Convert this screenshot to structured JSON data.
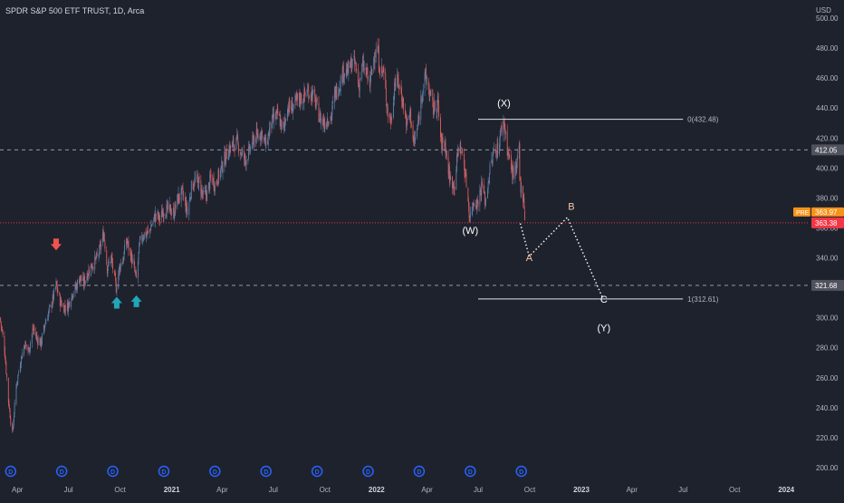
{
  "header": {
    "symbol_title": "SPDR S&P 500 ETF TRUST, 1D, Arca",
    "currency": "USD"
  },
  "colors": {
    "background": "#1e222d",
    "up": "#26a69a",
    "down": "#ef5350",
    "up_candle_body": "#5b7fa8",
    "down_candle_body": "#d65a5a",
    "last_price": "#f23645",
    "pre_market": "#f7931a",
    "level_line": "#e0e3eb",
    "wave_path": "#ffffff",
    "axis_text": "#b2b5be",
    "dividend_marker": "#2962ff"
  },
  "price_axis": {
    "ticks": [
      "500.00",
      "480.00",
      "460.00",
      "440.00",
      "420.00",
      "400.00",
      "380.00",
      "360.00",
      "340.00",
      "320.00",
      "300.00",
      "280.00",
      "260.00",
      "240.00",
      "220.00",
      "200.00"
    ]
  },
  "time_axis": {
    "ticks": [
      {
        "label": "Apr",
        "date": "2020-04-01"
      },
      {
        "label": "Jul",
        "date": "2020-07-01"
      },
      {
        "label": "Oct",
        "date": "2020-10-01"
      },
      {
        "label": "2021",
        "date": "2021-01-01",
        "bold": true
      },
      {
        "label": "Apr",
        "date": "2021-04-01"
      },
      {
        "label": "Jul",
        "date": "2021-07-01"
      },
      {
        "label": "Oct",
        "date": "2021-10-01"
      },
      {
        "label": "2022",
        "date": "2022-01-01",
        "bold": true
      },
      {
        "label": "Apr",
        "date": "2022-04-01"
      },
      {
        "label": "Jul",
        "date": "2022-07-01"
      },
      {
        "label": "Oct",
        "date": "2022-10-01"
      },
      {
        "label": "2023",
        "date": "2023-01-01",
        "bold": true
      },
      {
        "label": "Apr",
        "date": "2023-04-01"
      },
      {
        "label": "Jul",
        "date": "2023-07-01"
      },
      {
        "label": "Oct",
        "date": "2023-10-01"
      },
      {
        "label": "2024",
        "date": "2024-01-01",
        "bold": true
      }
    ]
  },
  "price_badges": {
    "last_price": "363.38",
    "pre_market_label": "PRE",
    "pre_market_price": "363.97",
    "level_412": "412.05",
    "level_321": "321.68"
  },
  "horizontal_levels": [
    {
      "price": 412.05,
      "style": "dashed"
    },
    {
      "price": 363.38,
      "style": "dotted-last"
    },
    {
      "price": 321.68,
      "style": "dashed"
    }
  ],
  "fib_levels": [
    {
      "label": "0(432.48)",
      "price": 432.48,
      "from": "2022-07-01",
      "to": "2023-07-01"
    },
    {
      "label": "1(312.61)",
      "price": 312.61,
      "from": "2022-07-01",
      "to": "2023-07-01"
    }
  ],
  "wave_labels": [
    {
      "text": "(X)",
      "date": "2022-08-16",
      "price": 441
    },
    {
      "text": "(W)",
      "date": "2022-06-17",
      "price": 356
    },
    {
      "text": "A",
      "date": "2022-09-30",
      "price": 338,
      "accent": true
    },
    {
      "text": "B",
      "date": "2022-12-14",
      "price": 372,
      "accent": true
    },
    {
      "text": "C",
      "date": "2023-02-10",
      "price": 310
    },
    {
      "text": "(Y)",
      "date": "2023-02-10",
      "price": 291
    }
  ],
  "wave_path": [
    {
      "date": "2022-09-14",
      "price": 363
    },
    {
      "date": "2022-09-30",
      "price": 341
    },
    {
      "date": "2022-12-07",
      "price": 367
    },
    {
      "date": "2023-02-07",
      "price": 314
    }
  ],
  "signal_arrows": [
    {
      "direction": "down",
      "color": "red",
      "date": "2020-06-09",
      "price": 348
    },
    {
      "direction": "up",
      "color": "teal",
      "date": "2020-09-25",
      "price": 311
    },
    {
      "direction": "up",
      "color": "teal",
      "date": "2020-10-30",
      "price": 312
    }
  ],
  "dividend_markers": {
    "label": "D",
    "dates": [
      "2020-03-20",
      "2020-06-19",
      "2020-09-18",
      "2020-12-18",
      "2021-03-19",
      "2021-06-18",
      "2021-09-17",
      "2021-12-17",
      "2022-03-18",
      "2022-06-17",
      "2022-09-16"
    ]
  },
  "chart_data": {
    "type": "candlestick",
    "title": "SPDR S&P 500 ETF TRUST, 1D, Arca",
    "ylabel": "USD",
    "ylim": [
      195,
      505
    ],
    "xlim": [
      "2020-03-01",
      "2024-02-10"
    ],
    "grid": false,
    "close_series": [
      [
        "2020-03-01",
        300
      ],
      [
        "2020-03-09",
        280
      ],
      [
        "2020-03-16",
        245
      ],
      [
        "2020-03-23",
        222
      ],
      [
        "2020-03-30",
        255
      ],
      [
        "2020-04-06",
        270
      ],
      [
        "2020-04-14",
        283
      ],
      [
        "2020-04-21",
        278
      ],
      [
        "2020-04-29",
        293
      ],
      [
        "2020-05-06",
        286
      ],
      [
        "2020-05-13",
        283
      ],
      [
        "2020-05-20",
        296
      ],
      [
        "2020-05-27",
        304
      ],
      [
        "2020-06-03",
        312
      ],
      [
        "2020-06-09",
        322
      ],
      [
        "2020-06-16",
        311
      ],
      [
        "2020-06-23",
        307
      ],
      [
        "2020-06-30",
        308
      ],
      [
        "2020-07-07",
        316
      ],
      [
        "2020-07-14",
        320
      ],
      [
        "2020-07-21",
        327
      ],
      [
        "2020-07-28",
        323
      ],
      [
        "2020-08-04",
        330
      ],
      [
        "2020-08-11",
        335
      ],
      [
        "2020-08-18",
        338
      ],
      [
        "2020-08-25",
        344
      ],
      [
        "2020-09-02",
        357
      ],
      [
        "2020-09-08",
        333
      ],
      [
        "2020-09-15",
        340
      ],
      [
        "2020-09-24",
        320
      ],
      [
        "2020-09-30",
        334
      ],
      [
        "2020-10-07",
        340
      ],
      [
        "2020-10-12",
        352
      ],
      [
        "2020-10-20",
        342
      ],
      [
        "2020-10-30",
        326
      ],
      [
        "2020-11-05",
        350
      ],
      [
        "2020-11-12",
        356
      ],
      [
        "2020-11-20",
        356
      ],
      [
        "2020-11-27",
        363
      ],
      [
        "2020-12-04",
        369
      ],
      [
        "2020-12-11",
        366
      ],
      [
        "2020-12-18",
        372
      ],
      [
        "2020-12-28",
        372
      ],
      [
        "2021-01-05",
        370
      ],
      [
        "2021-01-12",
        380
      ],
      [
        "2021-01-20",
        383
      ],
      [
        "2021-01-29",
        370
      ],
      [
        "2021-02-05",
        387
      ],
      [
        "2021-02-12",
        392
      ],
      [
        "2021-02-19",
        390
      ],
      [
        "2021-02-26",
        381
      ],
      [
        "2021-03-05",
        383
      ],
      [
        "2021-03-12",
        394
      ],
      [
        "2021-03-19",
        389
      ],
      [
        "2021-03-26",
        395
      ],
      [
        "2021-04-05",
        406
      ],
      [
        "2021-04-12",
        412
      ],
      [
        "2021-04-19",
        415
      ],
      [
        "2021-04-27",
        417
      ],
      [
        "2021-05-04",
        411
      ],
      [
        "2021-05-12",
        405
      ],
      [
        "2021-05-19",
        411
      ],
      [
        "2021-05-27",
        419
      ],
      [
        "2021-06-04",
        422
      ],
      [
        "2021-06-11",
        424
      ],
      [
        "2021-06-18",
        414
      ],
      [
        "2021-06-25",
        427
      ],
      [
        "2021-07-02",
        433
      ],
      [
        "2021-07-09",
        435
      ],
      [
        "2021-07-19",
        425
      ],
      [
        "2021-07-26",
        441
      ],
      [
        "2021-08-02",
        440
      ],
      [
        "2021-08-09",
        443
      ],
      [
        "2021-08-16",
        446
      ],
      [
        "2021-08-23",
        447
      ],
      [
        "2021-08-30",
        451
      ],
      [
        "2021-09-07",
        450
      ],
      [
        "2021-09-14",
        444
      ],
      [
        "2021-09-21",
        434
      ],
      [
        "2021-09-30",
        430
      ],
      [
        "2021-10-04",
        433
      ],
      [
        "2021-10-12",
        434
      ],
      [
        "2021-10-19",
        450
      ],
      [
        "2021-10-26",
        455
      ],
      [
        "2021-11-03",
        465
      ],
      [
        "2021-11-10",
        464
      ],
      [
        "2021-11-18",
        470
      ],
      [
        "2021-11-24",
        469
      ],
      [
        "2021-11-30",
        455
      ],
      [
        "2021-12-07",
        468
      ],
      [
        "2021-12-14",
        463
      ],
      [
        "2021-12-20",
        455
      ],
      [
        "2021-12-28",
        477
      ],
      [
        "2022-01-03",
        478
      ],
      [
        "2022-01-07",
        466
      ],
      [
        "2022-01-13",
        464
      ],
      [
        "2022-01-21",
        437
      ],
      [
        "2022-01-27",
        431
      ],
      [
        "2022-02-02",
        457
      ],
      [
        "2022-02-09",
        457
      ],
      [
        "2022-02-16",
        446
      ],
      [
        "2022-02-24",
        429
      ],
      [
        "2022-03-02",
        437
      ],
      [
        "2022-03-08",
        416
      ],
      [
        "2022-03-15",
        426
      ],
      [
        "2022-03-22",
        449
      ],
      [
        "2022-03-29",
        461
      ],
      [
        "2022-04-05",
        451
      ],
      [
        "2022-04-12",
        439
      ],
      [
        "2022-04-20",
        444
      ],
      [
        "2022-04-26",
        416
      ],
      [
        "2022-05-03",
        417
      ],
      [
        "2022-05-09",
        398
      ],
      [
        "2022-05-12",
        392
      ],
      [
        "2022-05-20",
        389
      ],
      [
        "2022-05-27",
        415
      ],
      [
        "2022-06-03",
        410
      ],
      [
        "2022-06-10",
        390
      ],
      [
        "2022-06-16",
        367
      ],
      [
        "2022-06-23",
        378
      ],
      [
        "2022-06-30",
        377
      ],
      [
        "2022-07-08",
        389
      ],
      [
        "2022-07-14",
        377
      ],
      [
        "2022-07-21",
        397
      ],
      [
        "2022-07-29",
        411
      ],
      [
        "2022-08-05",
        413
      ],
      [
        "2022-08-12",
        427
      ],
      [
        "2022-08-16",
        431
      ],
      [
        "2022-08-22",
        413
      ],
      [
        "2022-08-26",
        405
      ],
      [
        "2022-09-01",
        396
      ],
      [
        "2022-09-07",
        398
      ],
      [
        "2022-09-12",
        413
      ],
      [
        "2022-09-13",
        393
      ],
      [
        "2022-09-16",
        385
      ],
      [
        "2022-09-20",
        381
      ],
      [
        "2022-09-22",
        367
      ],
      [
        "2022-09-23",
        363.38
      ]
    ]
  }
}
